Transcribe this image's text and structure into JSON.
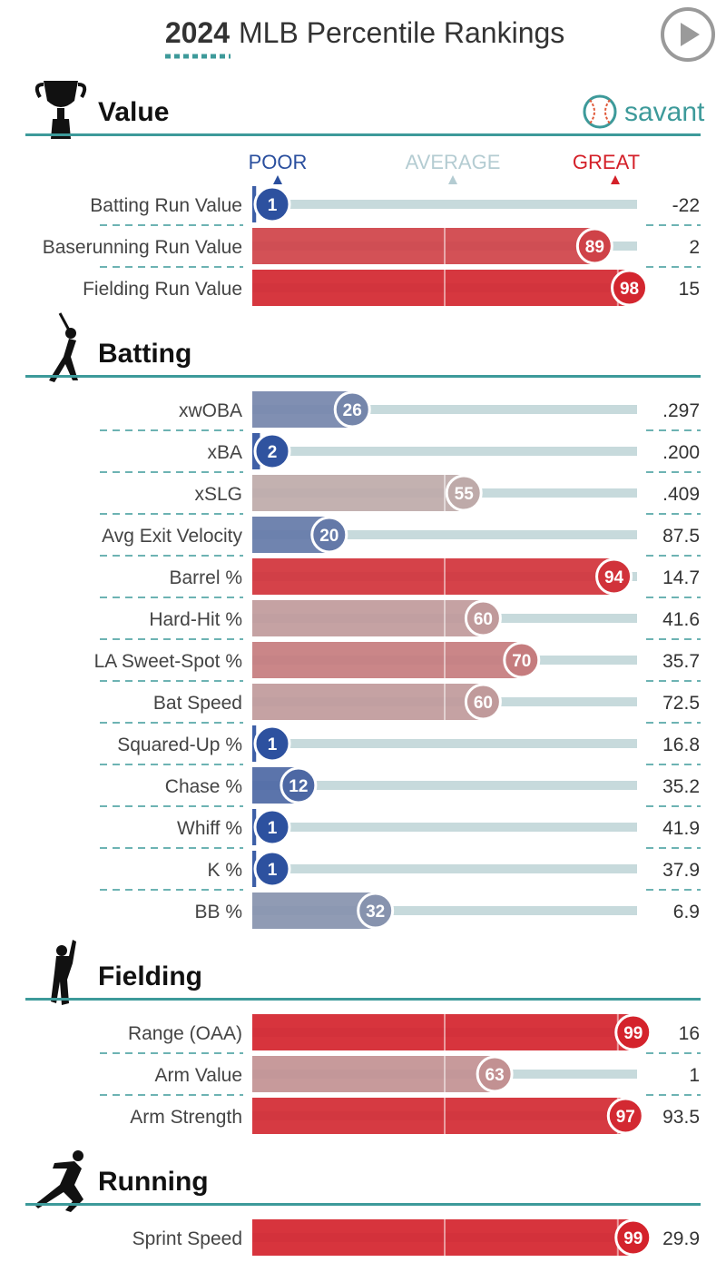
{
  "header": {
    "year": "2024",
    "title": "MLB Percentile Rankings",
    "brand": "savant",
    "play_icon": "play-icon"
  },
  "scale": {
    "poor": "POOR",
    "average": "AVERAGE",
    "great": "GREAT"
  },
  "colors": {
    "teal": "#3d9a9a",
    "track": "#c7dadc",
    "poor_blue": "#2a4f9e",
    "great_red": "#d42029",
    "average_label": "#b4ccd2"
  },
  "chart_data": {
    "type": "table",
    "title": "2024 MLB Percentile Rankings",
    "xlim": [
      0,
      100
    ],
    "sections": [
      {
        "name": "Value",
        "icon": "trophy-icon",
        "metrics": [
          {
            "label": "Batting Run Value",
            "percentile": 1,
            "value": "-22"
          },
          {
            "label": "Baserunning Run Value",
            "percentile": 89,
            "value": "2"
          },
          {
            "label": "Fielding Run Value",
            "percentile": 98,
            "value": "15"
          }
        ]
      },
      {
        "name": "Batting",
        "icon": "batter-icon",
        "metrics": [
          {
            "label": "xwOBA",
            "percentile": 26,
            "value": ".297"
          },
          {
            "label": "xBA",
            "percentile": 2,
            "value": ".200"
          },
          {
            "label": "xSLG",
            "percentile": 55,
            "value": ".409"
          },
          {
            "label": "Avg Exit Velocity",
            "percentile": 20,
            "value": "87.5"
          },
          {
            "label": "Barrel %",
            "percentile": 94,
            "value": "14.7"
          },
          {
            "label": "Hard-Hit %",
            "percentile": 60,
            "value": "41.6"
          },
          {
            "label": "LA Sweet-Spot %",
            "percentile": 70,
            "value": "35.7"
          },
          {
            "label": "Bat Speed",
            "percentile": 60,
            "value": "72.5"
          },
          {
            "label": "Squared-Up %",
            "percentile": 1,
            "value": "16.8"
          },
          {
            "label": "Chase %",
            "percentile": 12,
            "value": "35.2"
          },
          {
            "label": "Whiff %",
            "percentile": 1,
            "value": "41.9"
          },
          {
            "label": "K %",
            "percentile": 1,
            "value": "37.9"
          },
          {
            "label": "BB %",
            "percentile": 32,
            "value": "6.9"
          }
        ]
      },
      {
        "name": "Fielding",
        "icon": "fielder-icon",
        "metrics": [
          {
            "label": "Range (OAA)",
            "percentile": 99,
            "value": "16"
          },
          {
            "label": "Arm Value",
            "percentile": 63,
            "value": "1"
          },
          {
            "label": "Arm Strength",
            "percentile": 97,
            "value": "93.5"
          }
        ]
      },
      {
        "name": "Running",
        "icon": "runner-icon",
        "metrics": [
          {
            "label": "Sprint Speed",
            "percentile": 99,
            "value": "29.9"
          }
        ]
      }
    ]
  }
}
